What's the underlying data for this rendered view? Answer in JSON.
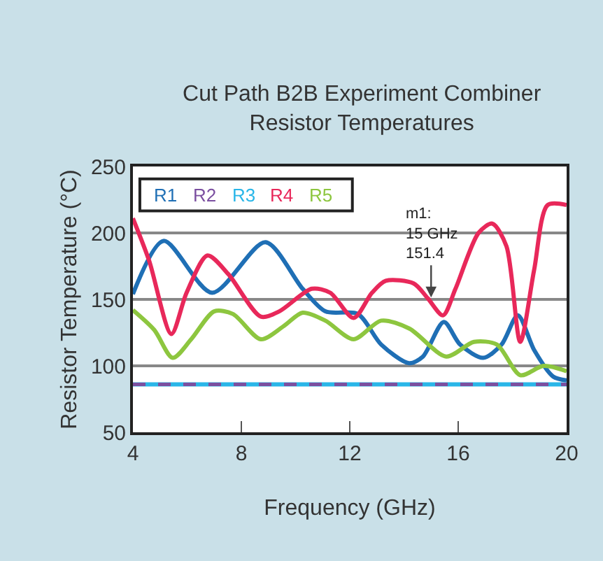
{
  "chart_data": {
    "type": "line",
    "title": "Cut Path B2B Experiment Combiner\nResistor Temperatures",
    "xlabel": "Frequency (GHz)",
    "ylabel": "Resistor Temperature (°C)",
    "xlim": [
      4,
      20
    ],
    "xticks": [
      4,
      8,
      12,
      16,
      20
    ],
    "ylim": [
      50,
      250
    ],
    "yticks": [
      50,
      100,
      150,
      200,
      250
    ],
    "grid": "y",
    "legend": "top left",
    "marker": "none",
    "annotations": [
      {
        "text": "m1:\n15 GHz\n151.4",
        "x": 15,
        "y": 151.4
      }
    ],
    "series": [
      {
        "name": "R1",
        "color": "#1f6fb5",
        "line_style": "solid",
        "x": [
          4,
          5.13,
          6.92,
          8.89,
          10.26,
          11.1,
          12.3,
          13.16,
          14.19,
          14.7,
          15.47,
          16.07,
          16.92,
          17.6,
          18.2,
          18.8,
          19.5,
          20
        ],
        "values": [
          154,
          194,
          155,
          193,
          158,
          141,
          139,
          116,
          102,
          107,
          133,
          116,
          106,
          116,
          138,
          112,
          92,
          89
        ]
      },
      {
        "name": "R2",
        "color": "#7b4fa0",
        "line_style": "dashed",
        "x": [
          4,
          20
        ],
        "values": [
          86,
          86
        ]
      },
      {
        "name": "R3",
        "color": "#29b6e8",
        "line_style": "solid",
        "x": [
          4,
          20
        ],
        "values": [
          86,
          86
        ]
      },
      {
        "name": "R4",
        "color": "#e8285a",
        "line_style": "solid",
        "x": [
          4,
          4.6,
          5.42,
          5.98,
          6.75,
          7.52,
          8.72,
          9.4,
          10.6,
          11.28,
          12.14,
          12.82,
          13.33,
          14.36,
          14.87,
          15.44,
          15.9,
          16.75,
          17.26,
          17.78,
          18.29,
          18.8,
          19.3,
          20
        ],
        "values": [
          211,
          179,
          124,
          155,
          183,
          169,
          137,
          141,
          158,
          155,
          136,
          155,
          164,
          162,
          151,
          138,
          158,
          200,
          207,
          190,
          118,
          172,
          221,
          221
        ]
      },
      {
        "name": "R5",
        "color": "#8dc63f",
        "line_style": "solid",
        "x": [
          4,
          4.79,
          5.47,
          6.15,
          7,
          7.69,
          8.72,
          9.57,
          10.26,
          11.1,
          12.14,
          13.16,
          14.2,
          15.56,
          16.58,
          17.43,
          18.29,
          19.15,
          20
        ],
        "values": [
          142,
          127,
          106,
          120,
          141,
          139,
          120,
          130,
          140,
          134,
          120,
          134,
          128,
          107,
          118,
          116,
          93,
          100,
          96
        ]
      }
    ]
  }
}
